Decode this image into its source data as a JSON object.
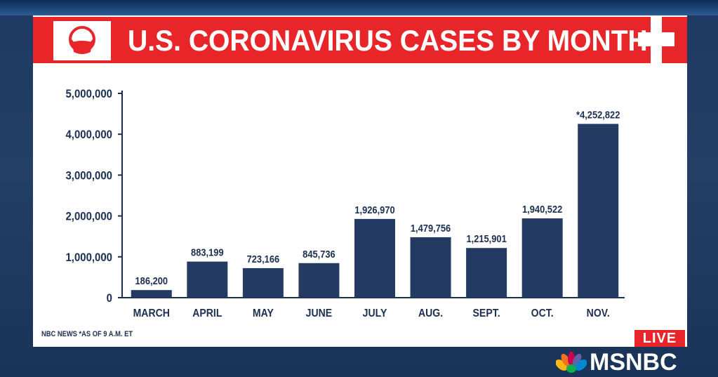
{
  "title": "U.S. CORONAVIRUS CASES BY MONTH",
  "footnote": "NBC NEWS *AS OF 9 A.M. ET",
  "live_badge": "LIVE",
  "network_name": "MSNBC",
  "colors": {
    "title_bar": "#e8262a",
    "bar": "#233b63",
    "live_badge": "#e8262a",
    "background": "#1d3a63"
  },
  "icons": [
    "face-mask-icon",
    "medical-cross-icon",
    "peacock-logo-icon"
  ],
  "chart_data": {
    "type": "bar",
    "title": "U.S. CORONAVIRUS CASES BY MONTH",
    "categories": [
      "MARCH",
      "APRIL",
      "MAY",
      "JUNE",
      "JULY",
      "AUG.",
      "SEPT.",
      "OCT.",
      "NOV."
    ],
    "values": [
      186200,
      883199,
      723166,
      845736,
      1926970,
      1479756,
      1215901,
      1940522,
      4252822
    ],
    "value_labels": [
      "186,200",
      "883,199",
      "723,166",
      "845,736",
      "1,926,970",
      "1,479,756",
      "1,215,901",
      "1,940,522",
      "*4,252,822"
    ],
    "ylim": [
      0,
      5000000
    ],
    "yticks": [
      0,
      1000000,
      2000000,
      3000000,
      4000000,
      5000000
    ],
    "ytick_labels": [
      "0",
      "1,000,000",
      "2,000,000",
      "3,000,000",
      "4,000,000",
      "5,000,000"
    ],
    "xlabel": "",
    "ylabel": "",
    "grid": false,
    "legend": "none"
  }
}
